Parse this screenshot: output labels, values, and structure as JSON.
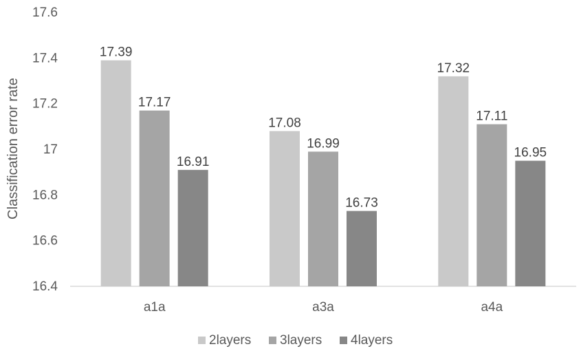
{
  "chart_data": {
    "type": "bar",
    "categories": [
      "a1a",
      "a3a",
      "a4a"
    ],
    "series": [
      {
        "name": "2layers",
        "values": [
          17.39,
          17.08,
          17.32
        ],
        "color": "#c9c9c9"
      },
      {
        "name": "3layers",
        "values": [
          17.17,
          16.99,
          17.11
        ],
        "color": "#a5a5a5"
      },
      {
        "name": "4layers",
        "values": [
          16.91,
          16.73,
          16.95
        ],
        "color": "#878787"
      }
    ],
    "ylabel": "Classification error rate",
    "ylim": [
      16.4,
      17.6
    ],
    "yticks": [
      "16.4",
      "16.6",
      "16.8",
      "17",
      "17.2",
      "17.4",
      "17.6"
    ],
    "grid": false,
    "legend_position": "bottom"
  }
}
